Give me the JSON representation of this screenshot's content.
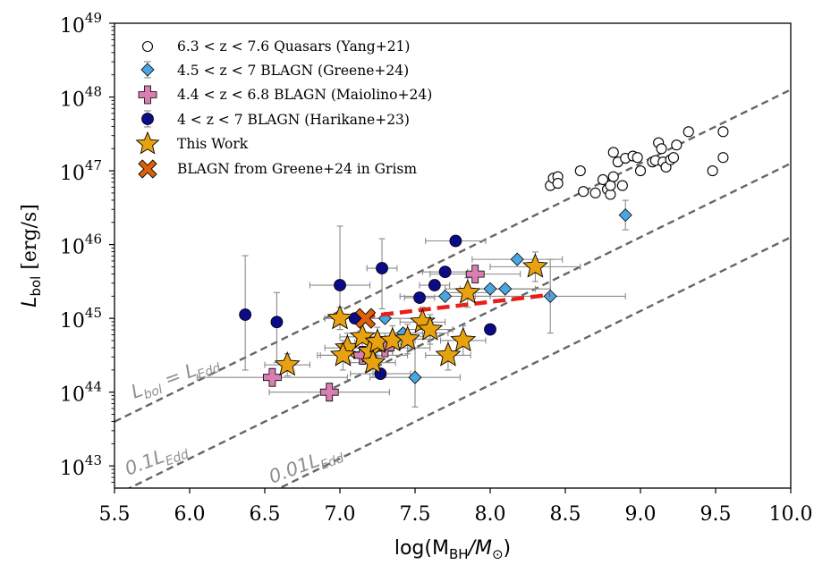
{
  "chart_data": {
    "type": "scatter",
    "xlabel_main": "log(M",
    "xlabel_sub1": "BH",
    "xlabel_mid": "/M",
    "xlabel_sub2": "⊙",
    "xlabel_end": ")",
    "ylabel_main": "L",
    "ylabel_sub": "bol",
    "ylabel_end": " [erg/s]",
    "xlim": [
      5.5,
      10.0
    ],
    "ylim_log10": [
      42.7,
      49.0
    ],
    "x_ticks": [
      5.5,
      6.0,
      6.5,
      7.0,
      7.5,
      8.0,
      8.5,
      9.0,
      9.5,
      10.0
    ],
    "x_tick_labels": [
      "5.5",
      "6.0",
      "6.5",
      "7.0",
      "7.5",
      "8.0",
      "8.5",
      "9.0",
      "9.5",
      "10.0"
    ],
    "y_ticks_log10": [
      43,
      44,
      45,
      46,
      47,
      48,
      49
    ],
    "y_tick_base": "10",
    "y_tick_exponents": [
      "43",
      "44",
      "45",
      "46",
      "47",
      "48",
      "49"
    ],
    "eddington_lines": [
      {
        "name": "L_Edd",
        "offset_log10": 38.1,
        "label_main": "L",
        "label_sub": "bol",
        "label_eq": " = L",
        "label_sub2": "Edd"
      },
      {
        "name": "0.1 L_Edd",
        "offset_log10": 37.1,
        "label_main": "0.1L",
        "label_sub": "Edd"
      },
      {
        "name": "0.01 L_Edd",
        "offset_log10": 36.1,
        "label_main": "0.01L",
        "label_sub": "Edd"
      }
    ],
    "fit_line": {
      "name": "fit",
      "x": [
        7.15,
        8.4
      ],
      "y_log10": [
        45.02,
        45.32
      ],
      "color": "#e8201a"
    },
    "series": [
      {
        "name": "Yang+21",
        "legend": "6.3 < z < 7.6 Quasars (Yang+21)",
        "marker": "circle-open",
        "color": "#000000",
        "points": [
          [
            8.4,
            46.8
          ],
          [
            8.42,
            46.9
          ],
          [
            8.45,
            46.92
          ],
          [
            8.45,
            46.83
          ],
          [
            8.6,
            47.0
          ],
          [
            8.62,
            46.72
          ],
          [
            8.7,
            46.7
          ],
          [
            8.75,
            46.88
          ],
          [
            8.78,
            46.75
          ],
          [
            8.8,
            46.68
          ],
          [
            8.8,
            46.8
          ],
          [
            8.82,
            46.92
          ],
          [
            8.85,
            47.12
          ],
          [
            8.82,
            47.25
          ],
          [
            8.88,
            46.8
          ],
          [
            8.9,
            47.17
          ],
          [
            8.95,
            47.2
          ],
          [
            8.98,
            47.18
          ],
          [
            9.0,
            47.0
          ],
          [
            9.08,
            47.12
          ],
          [
            9.1,
            47.14
          ],
          [
            9.12,
            47.38
          ],
          [
            9.14,
            47.3
          ],
          [
            9.15,
            47.12
          ],
          [
            9.17,
            47.05
          ],
          [
            9.2,
            47.15
          ],
          [
            9.22,
            47.18
          ],
          [
            9.24,
            47.35
          ],
          [
            9.32,
            47.53
          ],
          [
            9.48,
            47.0
          ],
          [
            9.55,
            47.53
          ],
          [
            9.55,
            47.18
          ]
        ]
      },
      {
        "name": "Greene+24",
        "legend": "4.5 < z < 7 BLAGN (Greene+24)",
        "marker": "diamond",
        "color": "#4aa6df",
        "points": [
          {
            "x": 7.3,
            "y": 45.0,
            "xe": 0.3,
            "yl": 0.0,
            "yh": 0.0
          },
          {
            "x": 7.42,
            "y": 44.8,
            "xe": 0.3,
            "yl": 0.0,
            "yh": 0.0
          },
          {
            "x": 7.5,
            "y": 44.2,
            "xe": 0.3,
            "yl": 0.4,
            "yh": 0.4
          },
          {
            "x": 7.7,
            "y": 45.3,
            "xe": 0.3,
            "yl": 0.0,
            "yh": 0.0
          },
          {
            "x": 8.0,
            "y": 45.4,
            "xe": 0.3,
            "yl": 0.0,
            "yh": 0.0
          },
          {
            "x": 8.1,
            "y": 45.4,
            "xe": 0.3,
            "yl": 0.0,
            "yh": 0.0
          },
          {
            "x": 8.18,
            "y": 45.8,
            "xe": 0.3,
            "yl": 0.0,
            "yh": 0.0
          },
          {
            "x": 8.4,
            "y": 45.3,
            "xe": 0.5,
            "yl": 0.5,
            "yh": 0.5
          },
          {
            "x": 8.9,
            "y": 46.4,
            "xe": 0.0,
            "yl": 0.2,
            "yh": 0.2
          }
        ]
      },
      {
        "name": "Maiolino+24",
        "legend": "4.4 < z < 6.8 BLAGN (Maiolino+24)",
        "marker": "plus",
        "color": "#d97eb0",
        "points": [
          {
            "x": 6.55,
            "y": 44.2,
            "xe": 0.5,
            "yl": 0.0,
            "yh": 0.0
          },
          {
            "x": 6.93,
            "y": 44.0,
            "xe": 0.4,
            "yl": 0.0,
            "yh": 0.0
          },
          {
            "x": 7.15,
            "y": 44.5,
            "xe": 0.3,
            "yl": 0.0,
            "yh": 0.0
          },
          {
            "x": 7.3,
            "y": 44.6,
            "xe": 0.3,
            "yl": 0.0,
            "yh": 0.0
          },
          {
            "x": 7.9,
            "y": 45.6,
            "xe": 0.3,
            "yl": 0.0,
            "yh": 0.0
          }
        ]
      },
      {
        "name": "Harikane+23",
        "legend": "4 < z < 7 BLAGN (Harikane+23)",
        "marker": "circle-filled",
        "color": "#0b0b87",
        "points": [
          {
            "x": 6.37,
            "y": 45.05,
            "xe": 0.0,
            "yl": 0.75,
            "yh": 0.8
          },
          {
            "x": 6.58,
            "y": 44.95,
            "xe": 0.0,
            "yl": 0.55,
            "yh": 0.4
          },
          {
            "x": 7.0,
            "y": 45.45,
            "xe": 0.2,
            "yl": 0.6,
            "yh": 0.8
          },
          {
            "x": 7.1,
            "y": 45.0,
            "xe": 0.2,
            "yl": 0.0,
            "yh": 0.0
          },
          {
            "x": 7.28,
            "y": 45.68,
            "xe": 0.1,
            "yl": 0.55,
            "yh": 0.4
          },
          {
            "x": 7.27,
            "y": 44.25,
            "xe": 0.2,
            "yl": 0.0,
            "yh": 0.0
          },
          {
            "x": 7.53,
            "y": 45.28,
            "xe": 0.1,
            "yl": 0.0,
            "yh": 0.0
          },
          {
            "x": 7.63,
            "y": 45.45,
            "xe": 0.1,
            "yl": 0.0,
            "yh": 0.0
          },
          {
            "x": 7.7,
            "y": 45.63,
            "xe": 0.15,
            "yl": 0.0,
            "yh": 0.0
          },
          {
            "x": 7.77,
            "y": 46.05,
            "xe": 0.2,
            "yl": 0.0,
            "yh": 0.0
          },
          {
            "x": 8.0,
            "y": 44.85,
            "xe": 0.0,
            "yl": 0.0,
            "yh": 0.0
          }
        ]
      },
      {
        "name": "This Work",
        "legend": "This Work",
        "marker": "star",
        "color": "#e8a20f",
        "points": [
          {
            "x": 6.65,
            "y": 44.37,
            "xe": 0.15,
            "yl": 0.15,
            "yh": 0.15
          },
          {
            "x": 7.0,
            "y": 45.0,
            "xe": 0.1,
            "yl": 0.15,
            "yh": 0.15
          },
          {
            "x": 7.05,
            "y": 44.6,
            "xe": 0.15,
            "yl": 0.2,
            "yh": 0.2
          },
          {
            "x": 7.02,
            "y": 44.5,
            "xe": 0.15,
            "yl": 0.2,
            "yh": 0.2
          },
          {
            "x": 7.15,
            "y": 44.75,
            "xe": 0.15,
            "yl": 0.2,
            "yh": 0.2
          },
          {
            "x": 7.2,
            "y": 44.55,
            "xe": 0.15,
            "yl": 0.2,
            "yh": 0.2
          },
          {
            "x": 7.25,
            "y": 44.68,
            "xe": 0.15,
            "yl": 0.2,
            "yh": 0.2
          },
          {
            "x": 7.22,
            "y": 44.4,
            "xe": 0.15,
            "yl": 0.2,
            "yh": 0.2
          },
          {
            "x": 7.35,
            "y": 44.7,
            "xe": 0.15,
            "yl": 0.2,
            "yh": 0.2
          },
          {
            "x": 7.45,
            "y": 44.72,
            "xe": 0.15,
            "yl": 0.2,
            "yh": 0.2
          },
          {
            "x": 7.55,
            "y": 44.95,
            "xe": 0.15,
            "yl": 0.2,
            "yh": 0.2
          },
          {
            "x": 7.6,
            "y": 44.85,
            "xe": 0.15,
            "yl": 0.2,
            "yh": 0.2
          },
          {
            "x": 7.72,
            "y": 44.5,
            "xe": 0.15,
            "yl": 0.2,
            "yh": 0.2
          },
          {
            "x": 7.82,
            "y": 44.7,
            "xe": 0.15,
            "yl": 0.2,
            "yh": 0.2
          },
          {
            "x": 7.85,
            "y": 45.35,
            "xe": 0.15,
            "yl": 0.2,
            "yh": 0.2
          },
          {
            "x": 8.3,
            "y": 45.7,
            "xe": 0.3,
            "yl": 0.2,
            "yh": 0.2
          }
        ]
      },
      {
        "name": "BLAGN from Greene+24 in Grism",
        "legend": "BLAGN from Greene+24 in Grism",
        "marker": "x-filled",
        "color": "#e0600a",
        "points": [
          {
            "x": 7.17,
            "y": 45.0,
            "xe": 0.0,
            "yl": 0.0,
            "yh": 0.0
          }
        ]
      }
    ]
  }
}
